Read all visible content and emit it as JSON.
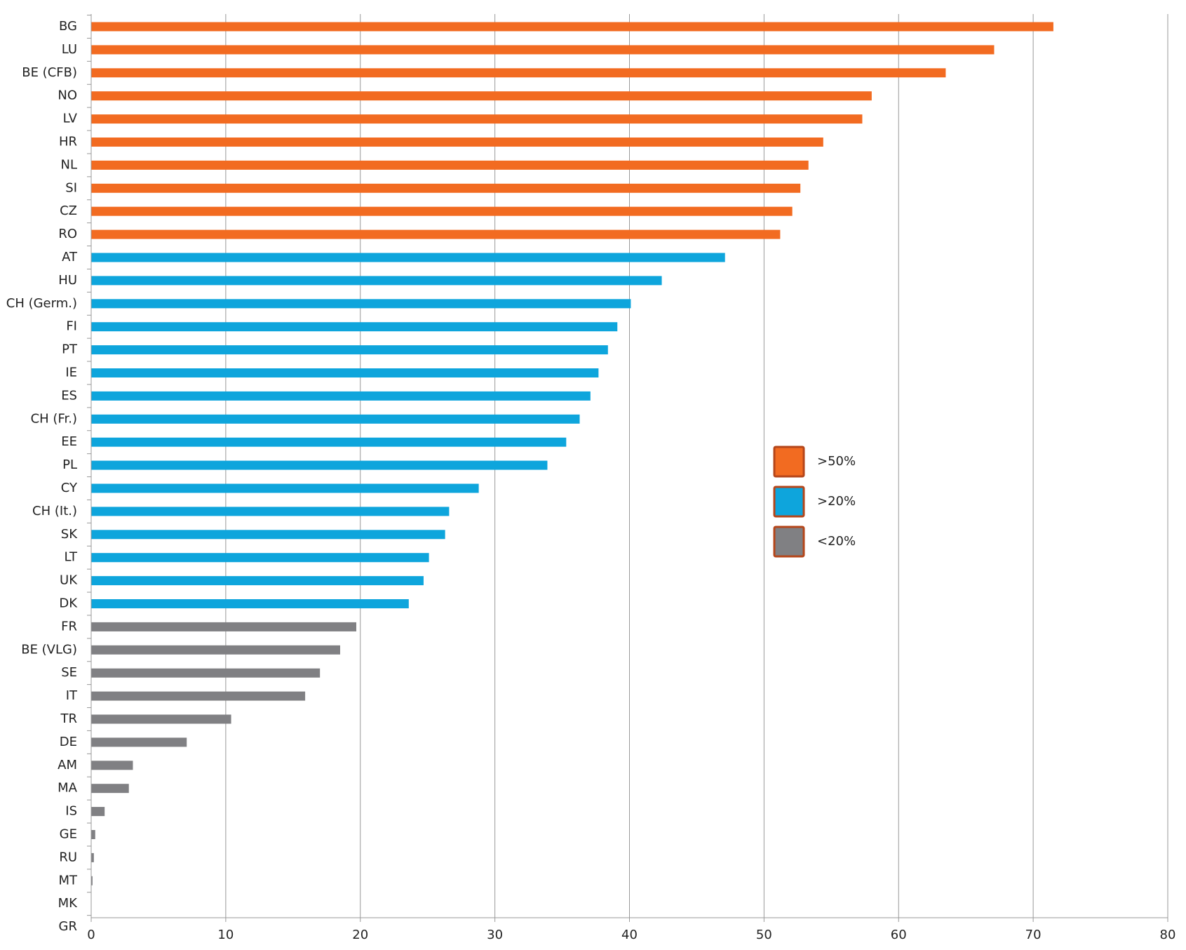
{
  "chart_data": {
    "type": "hbar",
    "categories": [
      "BG",
      "LU",
      "BE (CFB)",
      "NO",
      "LV",
      "HR",
      "NL",
      "SI",
      "CZ",
      "RO",
      "AT",
      "HU",
      "CH (Germ.)",
      "FI",
      "PT",
      "IE",
      "ES",
      "CH (Fr.)",
      "EE",
      "PL",
      "CY",
      "CH (It.)",
      "SK",
      "LT",
      "UK",
      "DK",
      "FR",
      "BE (VLG)",
      "SE",
      "IT",
      "TR",
      "DE",
      "AM",
      "MA",
      "IS",
      "GE",
      "RU",
      "MT",
      "MK",
      "GR"
    ],
    "series": [
      {
        "name": ">50%",
        "color": "#f26b21",
        "values": [
          71.5,
          67.1,
          63.5,
          58.0,
          57.3,
          54.4,
          53.3,
          52.7,
          52.1,
          51.2,
          null,
          null,
          null,
          null,
          null,
          null,
          null,
          null,
          null,
          null,
          null,
          null,
          null,
          null,
          null,
          null,
          null,
          null,
          null,
          null,
          null,
          null,
          null,
          null,
          null,
          null,
          null,
          null,
          null,
          null
        ]
      },
      {
        "name": ">20%",
        "color": "#0ea5dc",
        "values": [
          null,
          null,
          null,
          null,
          null,
          null,
          null,
          null,
          null,
          null,
          47.1,
          42.4,
          40.1,
          39.1,
          38.4,
          37.7,
          37.1,
          36.3,
          35.3,
          33.9,
          28.8,
          26.6,
          26.3,
          25.1,
          24.7,
          23.6,
          null,
          null,
          null,
          null,
          null,
          null,
          null,
          null,
          null,
          null,
          null,
          null,
          null,
          null
        ]
      },
      {
        "name": "<20%",
        "color": "#808083",
        "values": [
          null,
          null,
          null,
          null,
          null,
          null,
          null,
          null,
          null,
          null,
          null,
          null,
          null,
          null,
          null,
          null,
          null,
          null,
          null,
          null,
          null,
          null,
          null,
          null,
          null,
          null,
          19.7,
          18.5,
          17.0,
          15.9,
          10.4,
          7.1,
          3.1,
          2.8,
          1.0,
          0.3,
          0.2,
          0.1,
          0,
          0
        ]
      }
    ],
    "xlim": [
      0,
      80
    ],
    "xticks": [
      0,
      10,
      20,
      30,
      40,
      50,
      60,
      70,
      80
    ],
    "grid": true
  }
}
